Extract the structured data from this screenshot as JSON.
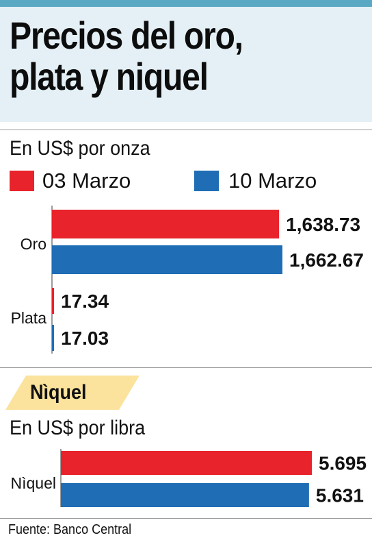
{
  "title_line1": "Precios del oro,",
  "title_line2": "plata y niquel",
  "colors": {
    "red": "#e8232b",
    "blue": "#1f6db4",
    "tag": "#fbe39d",
    "header_bg": "#e4f0f6",
    "stripe": "#5aa9c4"
  },
  "chart_data": [
    {
      "type": "bar",
      "orientation": "horizontal",
      "subtitle": "En US$ por onza",
      "categories": [
        "Oro",
        "Plata"
      ],
      "series": [
        {
          "name": "03 Marzo",
          "values": [
            1638.73,
            17.34
          ],
          "labels": [
            "1,638.73",
            "17.34"
          ]
        },
        {
          "name": "10 Marzo",
          "values": [
            1662.67,
            17.03
          ],
          "labels": [
            "1,662.67",
            "17.03"
          ]
        }
      ],
      "xlim": [
        0,
        1662.67
      ],
      "legend": "top"
    },
    {
      "type": "bar",
      "orientation": "horizontal",
      "tag": "Nìquel",
      "subtitle": "En US$ por libra",
      "categories": [
        "Nìquel"
      ],
      "series": [
        {
          "name": "03 Marzo",
          "values": [
            5.695
          ],
          "labels": [
            "5.695"
          ]
        },
        {
          "name": "10 Marzo",
          "values": [
            5.631
          ],
          "labels": [
            "5.631"
          ]
        }
      ],
      "xlim": [
        0,
        5.695
      ]
    }
  ],
  "source": "Fuente: Banco Central"
}
